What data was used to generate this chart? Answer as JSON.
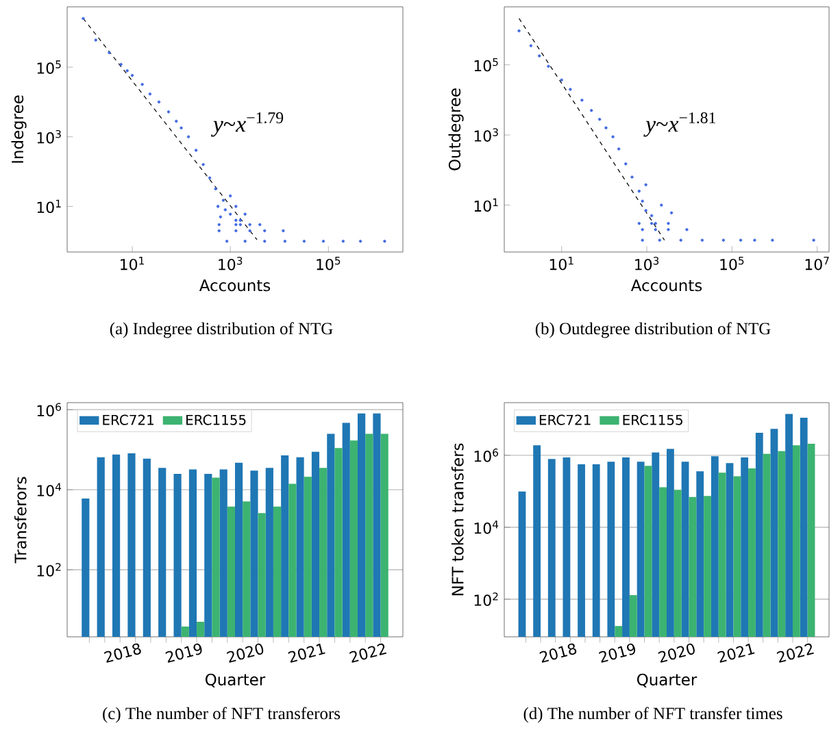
{
  "chart_data": [
    {
      "type": "scatter",
      "title": "(a)  Indegree distribution of NTG",
      "xlabel": "Accounts",
      "ylabel": "Indegree",
      "log": "xy",
      "xlim": [
        0.47,
        3300000
      ],
      "ylim": [
        0.49,
        5400000
      ],
      "xticks": [
        {
          "value": 10,
          "label": "10$^{1}$"
        },
        {
          "value": 1000,
          "label": "10$^{3}$"
        },
        {
          "value": 100000,
          "label": "10$^{5}$"
        }
      ],
      "yticks": [
        {
          "value": 10,
          "label": "10$^{1}$"
        },
        {
          "value": 1000,
          "label": "10$^{3}$"
        },
        {
          "value": 100000,
          "label": "10$^{5}$"
        }
      ],
      "annotations": [
        "*y*~*x*$^{−1.79}$"
      ],
      "series": [
        {
          "type": "scatter",
          "marker": "circle",
          "color": "#4169e1",
          "x": [
            1,
            1.8,
            3.4,
            5.9,
            7.9,
            10,
            16,
            23,
            35,
            55,
            79,
            100,
            140,
            200,
            280,
            380,
            500,
            720,
            1000,
            560,
            790,
            1300,
            1600,
            1000,
            1300,
            2000,
            850,
            2000,
            5000,
            13000,
            32000,
            79000,
            200000,
            450000,
            1400000,
            590,
            1300,
            2500,
            5000,
            12000,
            590,
            1300,
            2500,
            4000,
            630,
            1600
          ],
          "values": [
            2500000,
            600000,
            260000,
            120000,
            79000,
            58000,
            32000,
            17000,
            10000,
            5200,
            2800,
            1800,
            1000,
            410,
            160,
            66,
            32,
            15,
            6,
            10,
            8,
            4,
            3,
            20,
            10,
            6,
            1,
            1,
            1,
            1,
            1,
            1,
            1,
            1,
            1,
            2,
            2,
            2,
            2,
            2,
            3,
            3,
            3,
            3,
            5,
            4
          ]
        },
        {
          "type": "line",
          "marker": "none",
          "color": "#000000",
          "line_style": "dashed",
          "x": [
            1,
            3500
          ],
          "values": [
            2500000,
            1.1
          ]
        }
      ]
    },
    {
      "type": "scatter",
      "title": "(b)  Outdegree distribution of NTG",
      "xlabel": "Accounts",
      "ylabel": "Outdegree",
      "log": "xy",
      "xlim": [
        0.45,
        19000000
      ],
      "ylim": [
        0.46,
        4500000
      ],
      "xticks": [
        {
          "value": 10,
          "label": "10$^{1}$"
        },
        {
          "value": 1000,
          "label": "10$^{3}$"
        },
        {
          "value": 100000,
          "label": "10$^{5}$"
        },
        {
          "value": 10000000,
          "label": "10$^{7}$"
        }
      ],
      "yticks": [
        {
          "value": 10,
          "label": "10$^{1}$"
        },
        {
          "value": 1000,
          "label": "10$^{3}$"
        },
        {
          "value": 100000,
          "label": "10$^{5}$"
        }
      ],
      "annotations": [
        "*y*~*x*$^{−1.81}$"
      ],
      "series": [
        {
          "type": "scatter",
          "marker": "circle",
          "color": "#4169e1",
          "x": [
            1,
            1.9,
            3,
            4.9,
            10,
            16,
            30,
            50,
            78,
            110,
            160,
            220,
            320,
            450,
            660,
            950,
            950,
            790,
            1300,
            2200,
            3800,
            1600,
            790,
            2000,
            6300,
            20000,
            63000,
            160000,
            340000,
            890000,
            8300000,
            790,
            1600,
            3200,
            8700,
            660,
            1300,
            3200
          ],
          "values": [
            930000,
            350000,
            180000,
            91000,
            37000,
            20000,
            9800,
            5000,
            2800,
            1600,
            890,
            400,
            150,
            63,
            25,
            38,
            7,
            13,
            5,
            10,
            6,
            3,
            1,
            1,
            1,
            1,
            1,
            1,
            1,
            1,
            1,
            2,
            2,
            2,
            2,
            3,
            3,
            3
          ]
        },
        {
          "type": "line",
          "marker": "none",
          "color": "#000000",
          "line_style": "dashed",
          "x": [
            1,
            2600
          ],
          "values": [
            2100000,
            1
          ]
        }
      ]
    },
    {
      "type": "bar",
      "title": "(c)  The number of NFT transferors",
      "xlabel": "Quarter",
      "ylabel": "Transferors",
      "log": "y",
      "grid": "y",
      "legend": "top left",
      "ylim": [
        2.1,
        1500000
      ],
      "categories": [
        null,
        null,
        "2018",
        null,
        null,
        null,
        "2019",
        null,
        null,
        null,
        "2020",
        null,
        null,
        null,
        "2021",
        null,
        null,
        null,
        "2022",
        null
      ],
      "yticks": [
        {
          "value": 100,
          "label": "10$^{2}$"
        },
        {
          "value": 10000,
          "label": "10$^{4}$"
        },
        {
          "value": 1000000,
          "label": "10$^{6}$"
        }
      ],
      "series": [
        {
          "name": "ERC721",
          "color": "#1f77b4",
          "values": [
            6000,
            65000,
            76000,
            81000,
            60000,
            35000,
            25000,
            32000,
            25000,
            32000,
            47000,
            30000,
            35000,
            72000,
            65000,
            89000,
            250000,
            470000,
            810000,
            810000
          ]
        },
        {
          "name": "ERC1155",
          "color": "#3cb371",
          "values": [
            null,
            null,
            null,
            null,
            null,
            null,
            3.8,
            5,
            20000,
            3800,
            5100,
            2600,
            3800,
            14000,
            21000,
            35000,
            110000,
            170000,
            250000,
            250000
          ]
        }
      ]
    },
    {
      "type": "bar",
      "title": "(d)  The number of NFT transfer times",
      "xlabel": "Quarter",
      "ylabel": "NFT token transfers",
      "log": "y",
      "grid": "y",
      "legend": "top left",
      "ylim": [
        9,
        29000000
      ],
      "categories": [
        null,
        null,
        "2018",
        null,
        null,
        null,
        "2019",
        null,
        null,
        null,
        "2020",
        null,
        null,
        null,
        "2021",
        null,
        null,
        null,
        "2022",
        null
      ],
      "yticks": [
        {
          "value": 100,
          "label": "10$^{2}$"
        },
        {
          "value": 10000,
          "label": "10$^{4}$"
        },
        {
          "value": 1000000,
          "label": "10$^{6}$"
        }
      ],
      "series": [
        {
          "name": "ERC721",
          "color": "#1f77b4",
          "values": [
            98000,
            1900000,
            790000,
            870000,
            560000,
            560000,
            660000,
            870000,
            660000,
            1200000,
            1500000,
            660000,
            360000,
            940000,
            610000,
            870000,
            4200000,
            5400000,
            14000000,
            11000000
          ]
        },
        {
          "name": "ERC1155",
          "color": "#3cb371",
          "values": [
            null,
            null,
            null,
            null,
            null,
            null,
            18,
            130,
            510000,
            130000,
            110000,
            69000,
            74000,
            330000,
            260000,
            430000,
            1100000,
            1300000,
            1900000,
            2100000
          ]
        }
      ]
    }
  ]
}
